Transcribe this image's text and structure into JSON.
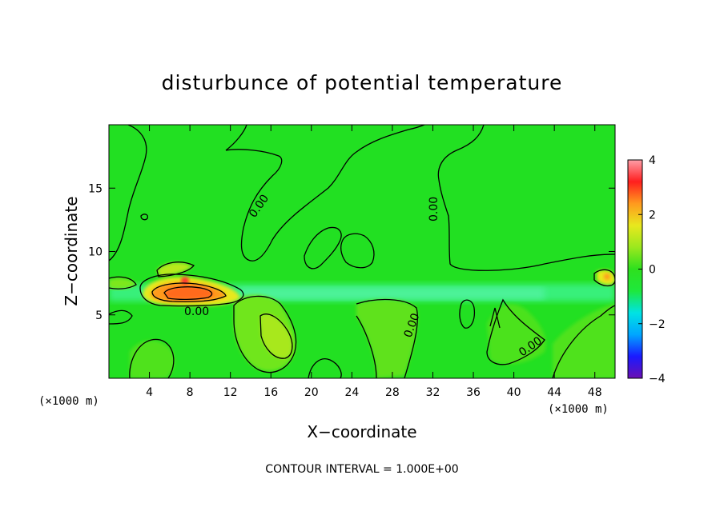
{
  "chart_data": {
    "type": "heatmap",
    "title": "disturbunce of potential temperature",
    "xlabel": "X−coordinate",
    "ylabel": "Z−coordinate",
    "x_unit": "(×1000 m)",
    "y_unit": "(×1000 m)",
    "xlim": [
      0,
      50
    ],
    "ylim": [
      0,
      20
    ],
    "xticks": [
      4,
      8,
      12,
      16,
      20,
      24,
      28,
      32,
      36,
      40,
      44,
      48
    ],
    "yticks": [
      5,
      10,
      15
    ],
    "colorbar": {
      "min": -4,
      "max": 4,
      "ticks": [
        4,
        2,
        0,
        -2,
        -4
      ],
      "colors": [
        "#6a0fb3",
        "#1a1aff",
        "#00a6ff",
        "#00e3e3",
        "#1ee83c",
        "#2ee01e",
        "#9be81e",
        "#e8e81e",
        "#ff9a1e",
        "#ff1e1e",
        "#ff9ea8"
      ]
    },
    "background_color": "#22e022",
    "contour_interval": "CONTOUR INTERVAL = 1.000E+00",
    "contour_labels": [
      "0.00",
      "0.00",
      "0.00",
      "0.00",
      "0.00"
    ],
    "features": [
      {
        "kind": "cool layer",
        "z_range": [
          5.5,
          7.3
        ],
        "value": -0.5
      },
      {
        "kind": "warm anomaly",
        "x_center": 8.5,
        "z_center": 6.8,
        "value": 3
      },
      {
        "kind": "warm anomaly",
        "x_center": 16.5,
        "z_center": 3.6,
        "value": 1
      }
    ]
  }
}
